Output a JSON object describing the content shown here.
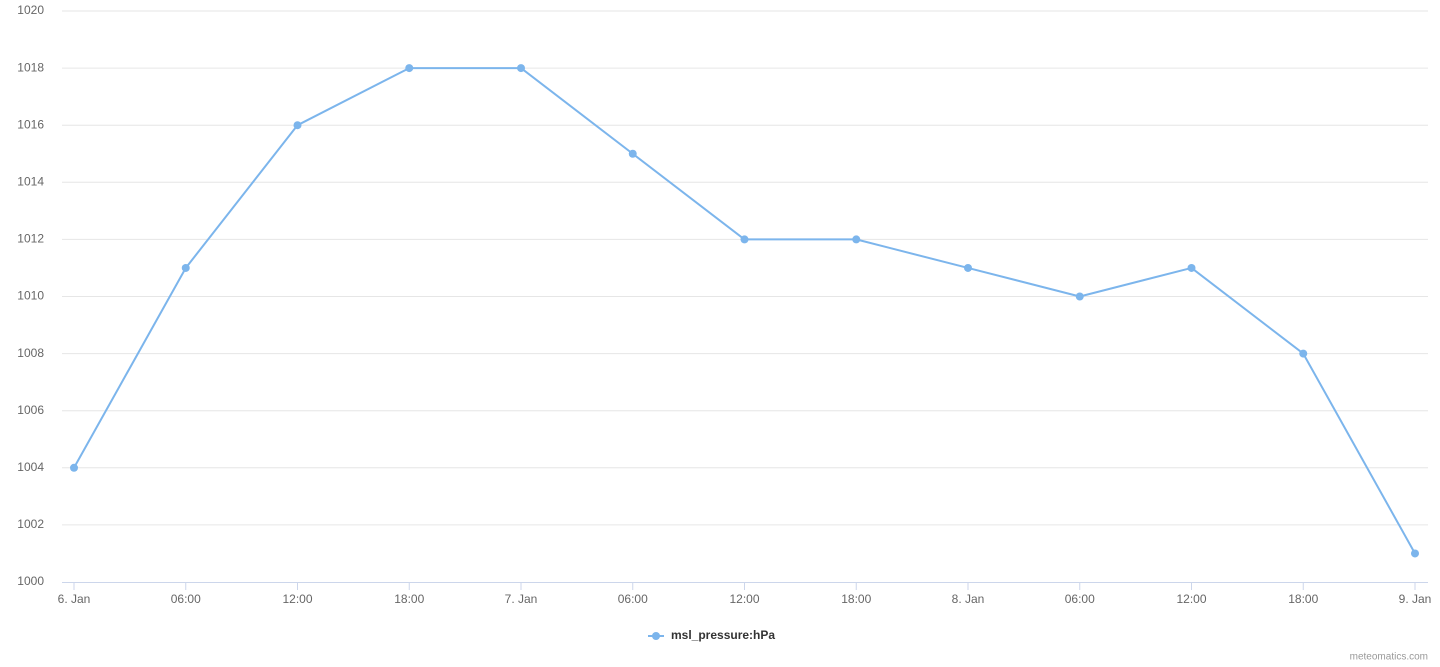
{
  "chart_data": {
    "type": "line",
    "categories": [
      "6. Jan",
      "06:00",
      "12:00",
      "18:00",
      "7. Jan",
      "06:00",
      "12:00",
      "18:00",
      "8. Jan",
      "06:00",
      "12:00",
      "18:00",
      "9. Jan"
    ],
    "series": [
      {
        "name": "msl_pressure:hPa",
        "color": "#7cb5ec",
        "values": [
          1004,
          1011,
          1016,
          1018,
          1018,
          1015,
          1012,
          1012,
          1011,
          1010,
          1011,
          1008,
          1001
        ]
      }
    ],
    "ylim": [
      1000,
      1020
    ],
    "yticks": [
      1000,
      1002,
      1004,
      1006,
      1008,
      1010,
      1012,
      1014,
      1016,
      1018,
      1020
    ],
    "grid": true,
    "legend": "bottom",
    "credits": "meteomatics.com"
  }
}
